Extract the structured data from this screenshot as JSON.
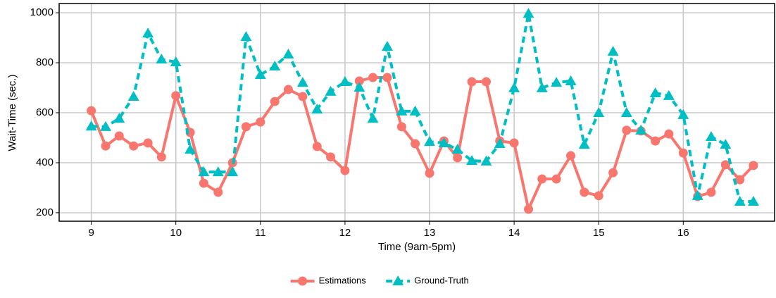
{
  "chart_data": {
    "type": "line",
    "xlabel": "Time (9am-5pm)",
    "ylabel": "Wait-Time (sec.)",
    "x": [
      9,
      9.17,
      9.33,
      9.5,
      9.67,
      9.83,
      10,
      10.17,
      10.33,
      10.5,
      10.67,
      10.83,
      11,
      11.17,
      11.33,
      11.5,
      11.67,
      11.83,
      12,
      12.17,
      12.33,
      12.5,
      12.67,
      12.83,
      13,
      13.17,
      13.33,
      13.5,
      13.67,
      13.83,
      14,
      14.17,
      14.33,
      14.5,
      14.67,
      14.83,
      15,
      15.17,
      15.33,
      15.5,
      15.67,
      15.83,
      16,
      16.17,
      16.33,
      16.5,
      16.67,
      16.83
    ],
    "series": [
      {
        "name": "Estimations",
        "color": "#f8766d",
        "marker": "circle",
        "dashed": false,
        "values": [
          608,
          467,
          507,
          467,
          479,
          423,
          668,
          521,
          318,
          282,
          400,
          544,
          563,
          645,
          693,
          665,
          465,
          423,
          369,
          727,
          741,
          741,
          544,
          476,
          358,
          487,
          420,
          724,
          724,
          487,
          479,
          214,
          335,
          335,
          428,
          282,
          268,
          360,
          530,
          527,
          487,
          515,
          439,
          265,
          282,
          392,
          332,
          389
        ]
      },
      {
        "name": "Ground-Truth",
        "color": "#00bfc4",
        "marker": "triangle",
        "dashed": true,
        "values": [
          546,
          544,
          577,
          665,
          918,
          814,
          803,
          453,
          363,
          363,
          363,
          904,
          752,
          786,
          834,
          721,
          614,
          685,
          724,
          701,
          577,
          865,
          606,
          606,
          484,
          479,
          453,
          408,
          406,
          476,
          699,
          997,
          699,
          721,
          727,
          473,
          600,
          845,
          600,
          530,
          679,
          668,
          592,
          268,
          504,
          473,
          245,
          245
        ]
      }
    ],
    "xlim": [
      8.62,
      17.08
    ],
    "ylim": [
      166,
      1037
    ],
    "xticks": [
      9,
      10,
      11,
      12,
      13,
      14,
      15,
      16
    ],
    "yticks": [
      200,
      400,
      600,
      800,
      1000
    ],
    "grid": true,
    "legend": "bottom"
  }
}
